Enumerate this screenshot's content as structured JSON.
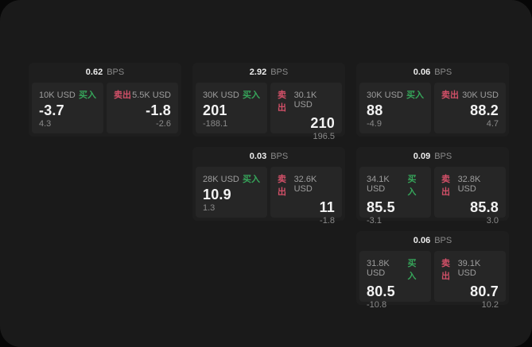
{
  "labels": {
    "buy": "买入",
    "sell": "卖出",
    "bps_unit": "BPS"
  },
  "colors": {
    "buy_green": "#36a55a",
    "sell_red": "#d25068",
    "window_bg": "#1a1a1a",
    "card_bg": "#1e1e1e",
    "panel_bg": "#262626"
  },
  "cards": [
    {
      "col": 1,
      "row": 1,
      "bps": "0.62",
      "buy": {
        "amount": "10K USD",
        "value": "-3.7",
        "delta": "4.3"
      },
      "sell": {
        "amount": "5.5K USD",
        "value": "-1.8",
        "delta": "-2.6"
      }
    },
    {
      "col": 2,
      "row": 1,
      "bps": "2.92",
      "buy": {
        "amount": "30K USD",
        "value": "201",
        "delta": "-188.1"
      },
      "sell": {
        "amount": "30.1K USD",
        "value": "210",
        "delta": "196.5"
      }
    },
    {
      "col": 3,
      "row": 1,
      "bps": "0.06",
      "buy": {
        "amount": "30K USD",
        "value": "88",
        "delta": "-4.9"
      },
      "sell": {
        "amount": "30K USD",
        "value": "88.2",
        "delta": "4.7"
      }
    },
    {
      "col": 2,
      "row": 2,
      "bps": "0.03",
      "buy": {
        "amount": "28K USD",
        "value": "10.9",
        "delta": "1.3"
      },
      "sell": {
        "amount": "32.6K USD",
        "value": "11",
        "delta": "-1.8"
      }
    },
    {
      "col": 3,
      "row": 2,
      "bps": "0.09",
      "buy": {
        "amount": "34.1K USD",
        "value": "85.5",
        "delta": "-3.1"
      },
      "sell": {
        "amount": "32.8K USD",
        "value": "85.8",
        "delta": "3.0"
      }
    },
    {
      "col": 3,
      "row": 3,
      "bps": "0.06",
      "buy": {
        "amount": "31.8K USD",
        "value": "80.5",
        "delta": "-10.8"
      },
      "sell": {
        "amount": "39.1K USD",
        "value": "80.7",
        "delta": "10.2"
      }
    }
  ]
}
